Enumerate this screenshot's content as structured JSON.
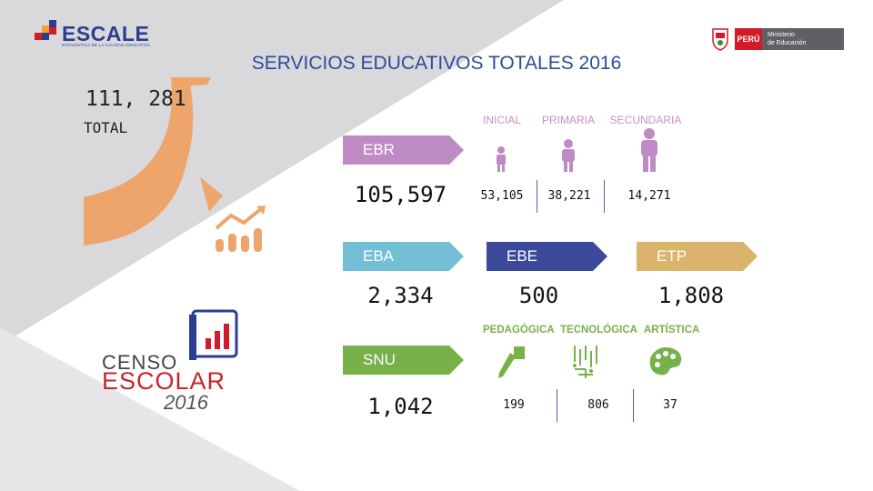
{
  "header": {
    "title": "SERVICIOS EDUCATIVOS TOTALES 2016",
    "escale_logo": "ESCALE",
    "escale_tagline": "ESTADÍSTICA DE LA CALIDAD EDUCATIVA",
    "peru_label": "PERÚ",
    "ministry_line1": "Ministerio",
    "ministry_line2": "de Educación"
  },
  "total": {
    "value": "111, 281",
    "label": "TOTAL"
  },
  "ebr": {
    "label": "EBR",
    "value": "105,597",
    "levels": [
      {
        "name": "INICIAL",
        "value": "53,105"
      },
      {
        "name": "PRIMARIA",
        "value": "38,221"
      },
      {
        "name": "SECUNDARIA",
        "value": "14,271"
      }
    ]
  },
  "eba": {
    "label": "EBA",
    "value": "2,334"
  },
  "ebe": {
    "label": "EBE",
    "value": "500"
  },
  "etp": {
    "label": "ETP",
    "value": "1,808"
  },
  "snu": {
    "label": "SNU",
    "value": "1,042",
    "types": [
      {
        "name": "PEDAGÓGICA",
        "value": "199"
      },
      {
        "name": "TECNOLÓGICA",
        "value": "806"
      },
      {
        "name": "ARTÍSTICA",
        "value": "37"
      }
    ]
  },
  "censo": {
    "line1": "CENSO",
    "line2": "ESCOLAR",
    "year": "2016"
  },
  "colors": {
    "ebr": "#be8bc4",
    "eba": "#72bfd6",
    "ebe": "#3c4a9c",
    "etp": "#d9b46a",
    "snu": "#78b04a",
    "arc": "#eda56c",
    "panel": "#dcdcdf",
    "title": "#2e4a9c"
  },
  "icons": [
    "growth-chart-icon",
    "child-icon",
    "student-icon",
    "teen-icon",
    "pen-icon",
    "circuit-icon",
    "palette-icon",
    "book-chart-icon"
  ]
}
